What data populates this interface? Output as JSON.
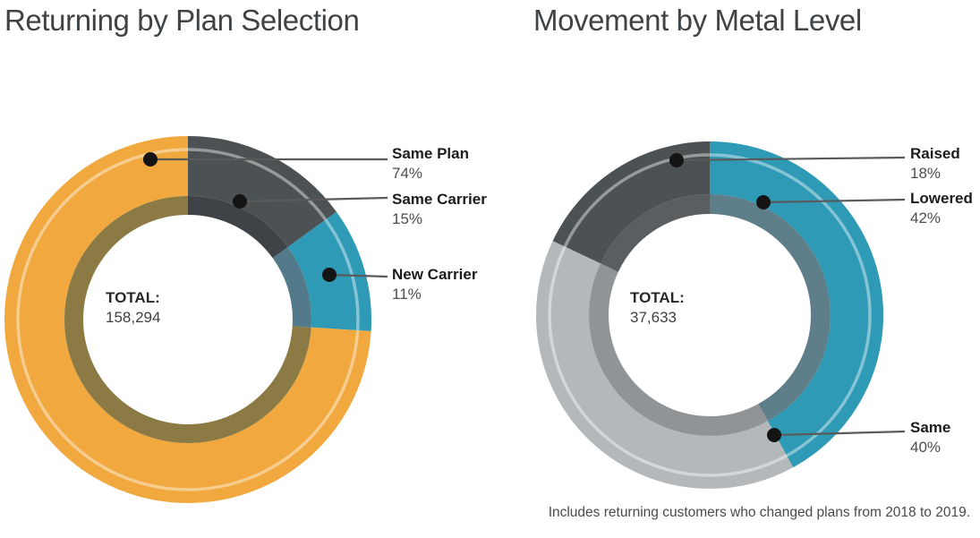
{
  "page": {
    "footnote": "Includes returning customers who changed plans from 2018 to 2019."
  },
  "chart_data": [
    {
      "type": "pie",
      "subtype": "donut",
      "title": "Returning by Plan Selection",
      "center_label": {
        "title": "TOTAL:",
        "value": "158,294"
      },
      "total": 158294,
      "start_at": "top",
      "direction": "clockwise",
      "clockwise_from_top": [
        "Same Carrier",
        "New Carrier",
        "Same Plan"
      ],
      "segments": [
        {
          "label": "Same Plan",
          "value": 74,
          "pct_label": "74%",
          "color": "#F1A83E",
          "muted_color": "#8C7A45"
        },
        {
          "label": "Same Carrier",
          "value": 15,
          "pct_label": "15%",
          "color": "#4C5154",
          "muted_color": "#3F4347"
        },
        {
          "label": "New Carrier",
          "value": 11,
          "pct_label": "11%",
          "color": "#2E9AB5",
          "muted_color": "#527A8A"
        }
      ]
    },
    {
      "type": "pie",
      "subtype": "donut",
      "title": "Movement by Metal Level",
      "center_label": {
        "title": "TOTAL:",
        "value": "37,633"
      },
      "total": 37633,
      "start_at": "top",
      "direction": "clockwise",
      "clockwise_from_top": [
        "Lowered",
        "Same",
        "Raised"
      ],
      "segments": [
        {
          "label": "Raised",
          "value": 18,
          "pct_label": "18%",
          "color": "#4C5154",
          "muted_color": "#5A5E60"
        },
        {
          "label": "Lowered",
          "value": 42,
          "pct_label": "42%",
          "color": "#2E9AB5",
          "muted_color": "#5E7E89"
        },
        {
          "label": "Same",
          "value": 40,
          "pct_label": "40%",
          "color": "#B5B8BA",
          "muted_color": "#909496"
        }
      ]
    }
  ],
  "style": {
    "highlight_stripe_color": "#FFFFFF",
    "leader_line_color": "#5a5a5a",
    "leader_dot_color": "#141414"
  }
}
